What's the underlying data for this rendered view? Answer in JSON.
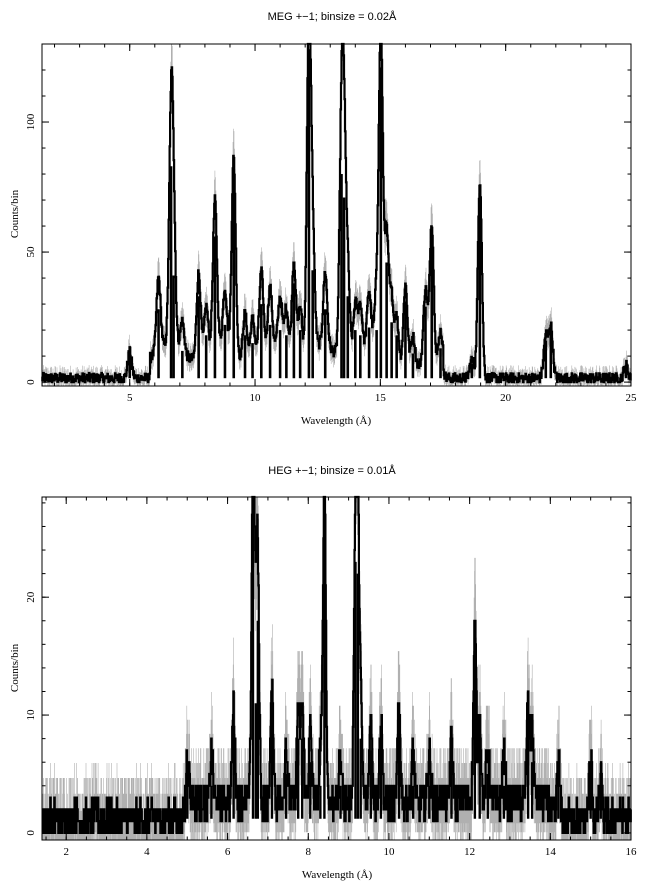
{
  "chart_data": [
    {
      "type": "line",
      "title": "MEG +−1; binsize = 0.02Å",
      "xlabel": "Wavelength (Å)",
      "ylabel": "Counts/bin",
      "xlim": [
        1.5,
        25
      ],
      "ylim": [
        -1.5,
        130
      ],
      "xticks": [
        5,
        10,
        15,
        20,
        25
      ],
      "yticks": [
        0,
        50,
        100
      ],
      "grid": false,
      "background_level": 1.5,
      "error_color": "#b0b0b0",
      "line_color": "#000000",
      "series": [
        {
          "values": [
            [
              5.0,
              10
            ],
            [
              6.15,
              28
            ],
            [
              6.65,
              83
            ],
            [
              6.75,
              41
            ],
            [
              7.1,
              12
            ],
            [
              7.75,
              33
            ],
            [
              8.05,
              18
            ],
            [
              8.4,
              56
            ],
            [
              8.8,
              22
            ],
            [
              9.15,
              75
            ],
            [
              9.6,
              18
            ],
            [
              9.9,
              15
            ],
            [
              10.25,
              30
            ],
            [
              10.6,
              22
            ],
            [
              11.0,
              20
            ],
            [
              11.25,
              18
            ],
            [
              11.55,
              38
            ],
            [
              11.8,
              20
            ],
            [
              12.15,
              128
            ],
            [
              12.3,
              43
            ],
            [
              12.8,
              28
            ],
            [
              13.45,
              80
            ],
            [
              13.55,
              71
            ],
            [
              13.7,
              33
            ],
            [
              14.0,
              20
            ],
            [
              14.2,
              18
            ],
            [
              14.55,
              21
            ],
            [
              14.85,
              20
            ],
            [
              15.02,
              121
            ],
            [
              15.25,
              46
            ],
            [
              15.45,
              23
            ],
            [
              15.65,
              18
            ],
            [
              16.0,
              31
            ],
            [
              16.3,
              11
            ],
            [
              16.8,
              29
            ],
            [
              17.05,
              55
            ],
            [
              17.4,
              13
            ],
            [
              18.65,
              7
            ],
            [
              18.97,
              76
            ],
            [
              21.6,
              16
            ],
            [
              21.8,
              20
            ],
            [
              24.8,
              5
            ]
          ]
        }
      ]
    },
    {
      "type": "line",
      "title": "HEG +−1; binsize = 0.01Å",
      "xlabel": "Wavelength (Å)",
      "ylabel": "Counts/bin",
      "xlim": [
        1.4,
        16
      ],
      "ylim": [
        -0.6,
        28.5
      ],
      "xticks": [
        2,
        4,
        6,
        8,
        10,
        12,
        14,
        16
      ],
      "yticks": [
        0,
        10,
        20
      ],
      "grid": false,
      "background_level": 1.2,
      "error_color": "#b0b0b0",
      "line_color": "#000000",
      "series": [
        {
          "values": [
            [
              5.0,
              5
            ],
            [
              5.6,
              4
            ],
            [
              6.15,
              8
            ],
            [
              6.63,
              28
            ],
            [
              6.7,
              11
            ],
            [
              6.75,
              18
            ],
            [
              7.1,
              9
            ],
            [
              7.45,
              5
            ],
            [
              7.75,
              8
            ],
            [
              7.85,
              8
            ],
            [
              8.05,
              6
            ],
            [
              8.3,
              4
            ],
            [
              8.4,
              28
            ],
            [
              8.8,
              4
            ],
            [
              9.17,
              23
            ],
            [
              9.23,
              22
            ],
            [
              9.3,
              8
            ],
            [
              9.55,
              7
            ],
            [
              9.8,
              7
            ],
            [
              10.25,
              8
            ],
            [
              10.6,
              4
            ],
            [
              11.0,
              4
            ],
            [
              11.55,
              5
            ],
            [
              12.13,
              15
            ],
            [
              12.25,
              7
            ],
            [
              12.45,
              5
            ],
            [
              12.85,
              4
            ],
            [
              13.45,
              8
            ],
            [
              13.55,
              6
            ],
            [
              14.2,
              5
            ],
            [
              15.0,
              5
            ],
            [
              15.25,
              3
            ]
          ]
        }
      ]
    }
  ]
}
